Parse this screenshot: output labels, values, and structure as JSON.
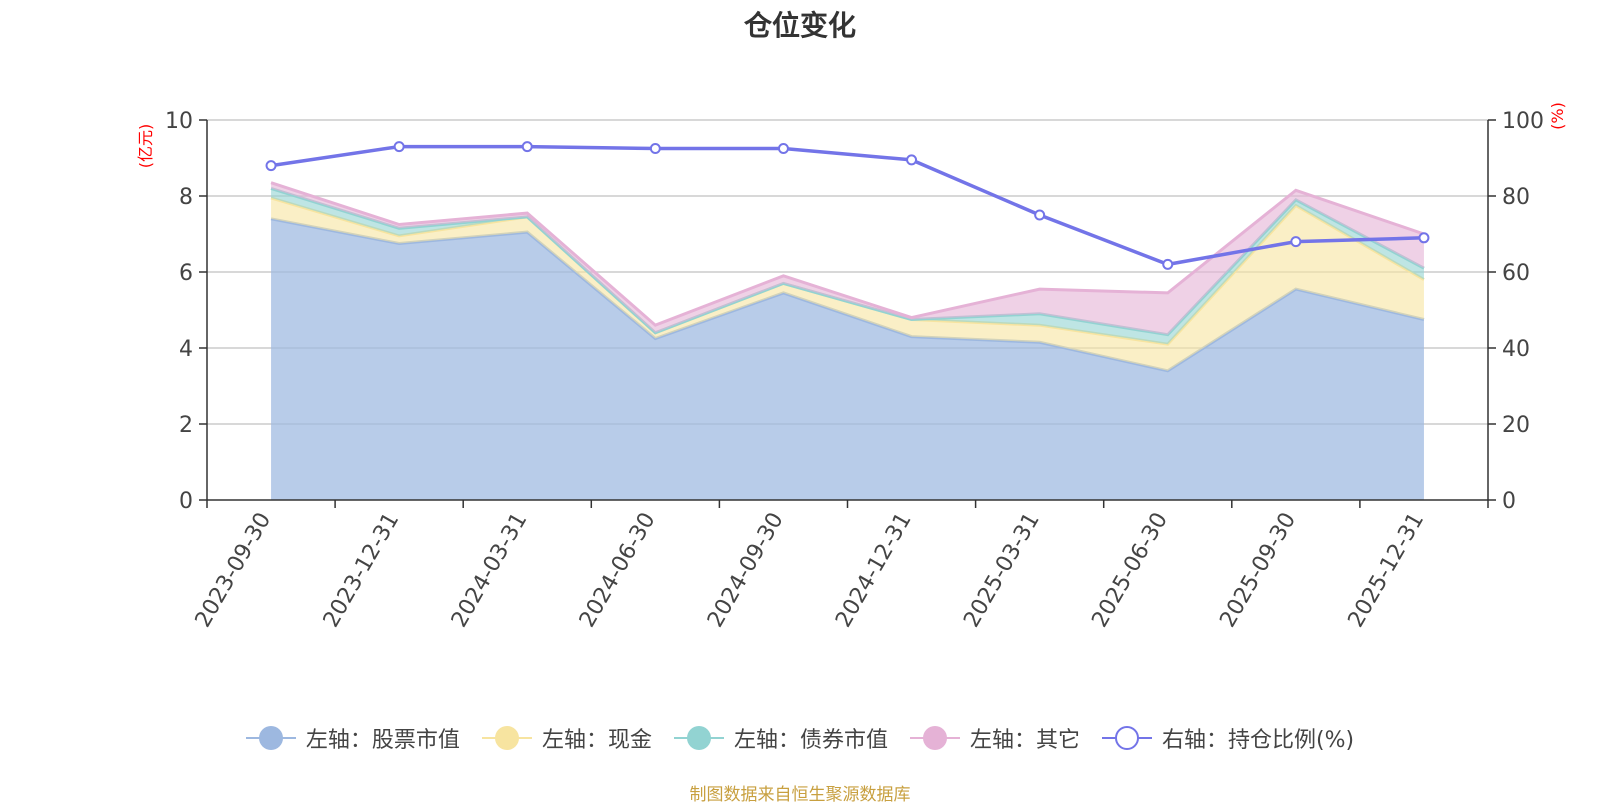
{
  "title": "仓位变化",
  "source_text": "制图数据来自恒生聚源数据库",
  "chart_data": {
    "type": "area",
    "stacked": true,
    "categories": [
      "2023-09-30",
      "2023-12-31",
      "2024-03-31",
      "2024-06-30",
      "2024-09-30",
      "2024-12-31",
      "2025-03-31",
      "2025-06-30",
      "2025-09-30",
      "2025-12-31"
    ],
    "left_axis": {
      "label": "(亿元)",
      "min": 0,
      "max": 10,
      "ticks": [
        0,
        2,
        4,
        6,
        8,
        10
      ]
    },
    "right_axis": {
      "label": "(%)",
      "min": 0,
      "max": 100,
      "ticks": [
        0,
        20,
        40,
        60,
        80,
        100
      ]
    },
    "series": [
      {
        "name": "左轴：股票市值",
        "axis": "left",
        "color": "#9db8e0",
        "values": [
          7.4,
          6.75,
          7.05,
          4.25,
          5.45,
          4.3,
          4.15,
          3.4,
          5.55,
          4.75
        ]
      },
      {
        "name": "左轴：现金",
        "axis": "left",
        "color": "#f7e4a0",
        "values": [
          0.55,
          0.2,
          0.4,
          0.15,
          0.25,
          0.45,
          0.45,
          0.7,
          2.2,
          1.05
        ]
      },
      {
        "name": "左轴：债券市值",
        "axis": "left",
        "color": "#92d3d2",
        "values": [
          0.25,
          0.2,
          0.0,
          0.0,
          0.0,
          0.0,
          0.3,
          0.25,
          0.15,
          0.3
        ]
      },
      {
        "name": "左轴：其它",
        "axis": "left",
        "color": "#e5b2d6",
        "values": [
          0.15,
          0.1,
          0.1,
          0.2,
          0.2,
          0.05,
          0.65,
          1.1,
          0.25,
          0.9
        ]
      },
      {
        "name": "右轴：持仓比例(%)",
        "axis": "right",
        "type": "line",
        "color": "#7374e8",
        "values": [
          88,
          93,
          93,
          92.5,
          92.5,
          89.5,
          75,
          62,
          68,
          69
        ]
      }
    ]
  }
}
